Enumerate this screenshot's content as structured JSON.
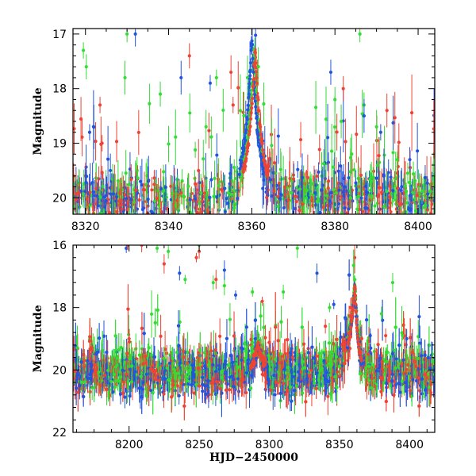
{
  "chart_data": [
    {
      "type": "scatter",
      "panel": "top",
      "title": "",
      "xlabel": "",
      "ylabel": "Magnitude",
      "xlim": [
        8317,
        8404
      ],
      "ylim": [
        20.3,
        16.9
      ],
      "y_inverted": true,
      "xticks": [
        8320,
        8340,
        8360,
        8380,
        8400
      ],
      "yticks": [
        17,
        18,
        19,
        20
      ],
      "error_bars": true,
      "grid": false,
      "legend": "none",
      "series": [
        {
          "color": "#33dd33",
          "baseline": 19.95,
          "scatter": 0.22,
          "peak_x": 8360.5,
          "peak_mag": 17.2,
          "outliers": [
            [
              8319.5,
              17.3
            ],
            [
              8320.2,
              17.6
            ],
            [
              8329.5,
              17.8
            ],
            [
              8330,
              17.0
            ],
            [
              8338,
              18.1
            ],
            [
              8349,
              18.7
            ],
            [
              8351.5,
              17.8
            ],
            [
              8380,
              18.2
            ],
            [
              8381.5,
              18.6
            ],
            [
              8386,
              17.0
            ],
            [
              8387,
              18.3
            ],
            [
              8390,
              18.7
            ],
            [
              8395,
              19.3
            ]
          ]
        },
        {
          "color": "#2255dd",
          "baseline": 19.98,
          "scatter": 0.22,
          "peak_x": 8360.0,
          "peak_mag": 17.05,
          "outliers": [
            [
              8321,
              18.8
            ],
            [
              8332,
              17.0
            ],
            [
              8343,
              17.8
            ],
            [
              8350,
              17.9
            ],
            [
              8379,
              17.7
            ],
            [
              8387,
              18.5
            ],
            [
              8391,
              18.8
            ],
            [
              8398,
              19.3
            ],
            [
              8326,
              19.5
            ]
          ]
        },
        {
          "color": "#ee4433",
          "baseline": 20.0,
          "scatter": 0.22,
          "peak_x": 8360.8,
          "peak_mag": 17.25,
          "outliers": [
            [
              8323.5,
              18.3
            ],
            [
              8345,
              17.4
            ],
            [
              8355,
              17.7
            ],
            [
              8355.5,
              18.3
            ],
            [
              8382,
              18.0
            ],
            [
              8392.5,
              18.4
            ],
            [
              8324,
              19.0
            ]
          ]
        }
      ]
    },
    {
      "type": "scatter",
      "panel": "bottom",
      "title": "",
      "xlabel": "HJD−2450000",
      "ylabel": "Magnitude",
      "xlim": [
        8160,
        8418
      ],
      "ylim": [
        22,
        16
      ],
      "y_inverted": true,
      "xticks": [
        8200,
        8250,
        8300,
        8350,
        8400
      ],
      "yticks": [
        16,
        18,
        20,
        22
      ],
      "error_bars": true,
      "grid": false,
      "legend": "none",
      "bumps": [
        [
          8292,
          19.1
        ],
        [
          8361,
          17.2
        ]
      ],
      "series": [
        {
          "color": "#33dd33",
          "baseline": 20.0,
          "scatter": 0.4,
          "outliers": [
            [
              8220,
              16.1
            ],
            [
              8228,
              16.2
            ],
            [
              8250,
              16.0
            ],
            [
              8240,
              17.1
            ],
            [
              8260,
              17.2
            ],
            [
              8268,
              17.3
            ],
            [
              8288,
              17.5
            ],
            [
              8310,
              17.5
            ],
            [
              8320,
              16.1
            ],
            [
              8343,
              18.0
            ],
            [
              8380,
              18.2
            ],
            [
              8388,
              17.2
            ],
            [
              8395,
              18.9
            ]
          ]
        },
        {
          "color": "#2255dd",
          "baseline": 20.05,
          "scatter": 0.4,
          "outliers": [
            [
              8198,
              16.1
            ],
            [
              8236,
              16.9
            ],
            [
              8268,
              16.8
            ],
            [
              8276,
              17.6
            ],
            [
              8290,
              19.0
            ],
            [
              8334,
              16.9
            ],
            [
              8346,
              17.9
            ],
            [
              8372,
              18.9
            ],
            [
              8398,
              19.0
            ]
          ]
        },
        {
          "color": "#ee4433",
          "baseline": 20.05,
          "scatter": 0.4,
          "outliers": [
            [
              8199,
              16.0
            ],
            [
              8209,
              16.0
            ],
            [
              8225,
              16.6
            ],
            [
              8248,
              16.4
            ],
            [
              8250,
              16.2
            ],
            [
              8262,
              17.1
            ],
            [
              8295,
              17.8
            ],
            [
              8340,
              18.6
            ],
            [
              8358,
              18.0
            ],
            [
              8200,
              19.0
            ],
            [
              8383,
              18.9
            ]
          ]
        }
      ]
    }
  ]
}
